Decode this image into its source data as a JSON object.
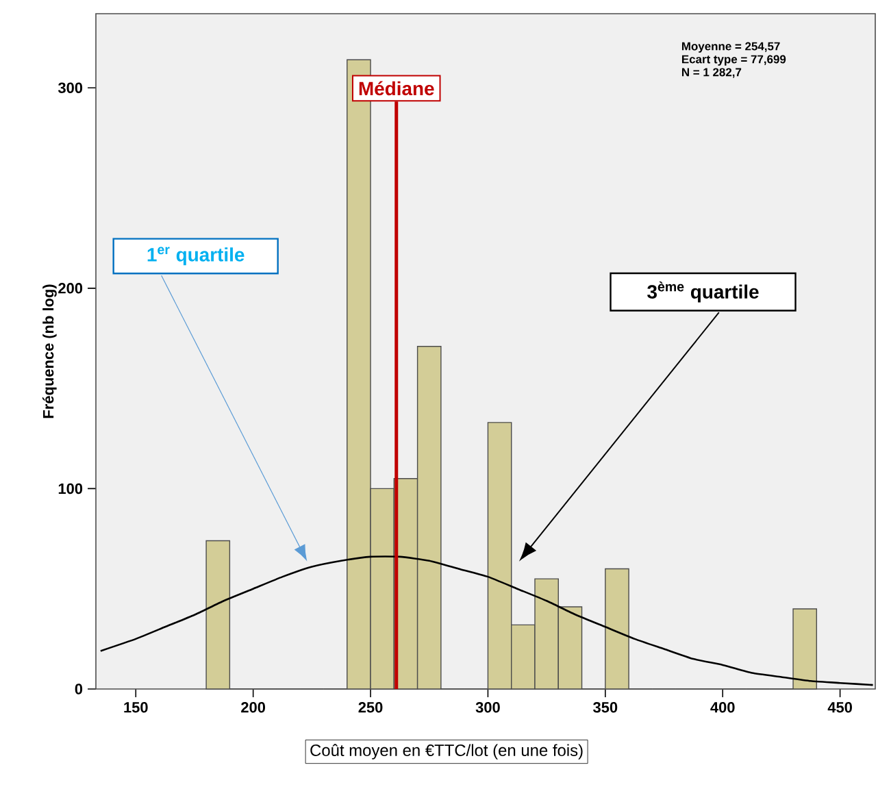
{
  "chart_data": {
    "type": "histogram",
    "xlabel": "Coût moyen en €TTC/lot (en une fois)",
    "ylabel": "Fréquence (nb log)",
    "xlim": [
      133,
      465
    ],
    "xticks": [
      150,
      200,
      250,
      300,
      350,
      400,
      450
    ],
    "ylim": [
      0,
      337
    ],
    "yticks": [
      0,
      100,
      200,
      300
    ],
    "grid": false,
    "series": [
      {
        "color": "#d3cd97",
        "bins": [
          180,
          190,
          200,
          210,
          220,
          230,
          240,
          250,
          260,
          270,
          280,
          290,
          300,
          310,
          320,
          330,
          340,
          350,
          360,
          370,
          380,
          390,
          400,
          410,
          420,
          430,
          440
        ],
        "values": [
          74,
          0,
          0,
          0,
          0,
          0,
          314,
          100,
          105,
          171,
          0,
          0,
          133,
          32,
          55,
          41,
          0,
          60,
          0,
          0,
          0,
          0,
          0,
          0,
          0,
          40
        ]
      },
      {
        "type": "line",
        "color": "#000000",
        "x": [
          135,
          150,
          162.5,
          175,
          187.5,
          200,
          212.5,
          225,
          237.5,
          250,
          262.5,
          275,
          287.5,
          300,
          312.5,
          325,
          337.5,
          350,
          362.5,
          375,
          387.5,
          400,
          412.5,
          425,
          437.5,
          450,
          464
        ],
        "values": [
          19,
          25,
          31,
          37,
          44,
          50,
          56,
          61,
          64,
          66,
          66,
          64,
          60,
          56,
          50,
          44,
          37,
          31,
          25,
          20,
          15,
          12,
          8,
          6,
          4,
          3,
          2
        ]
      }
    ],
    "ref_lines": [
      {
        "axis": "x",
        "value": 261,
        "label": "Médiane",
        "color": "#c00000"
      }
    ],
    "annotations": [
      "1$^{er}$ quartile",
      "3$^{ème}$ quartile",
      "Moyenne = 254,57",
      "Ecart type = 77,699",
      "N = 1 282,7"
    ]
  }
}
